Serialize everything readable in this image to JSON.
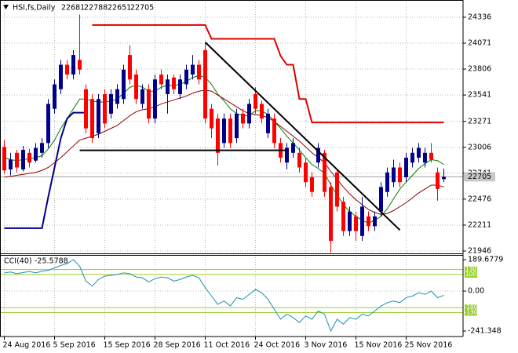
{
  "chart_data": {
    "type": "candlestick",
    "symbol": "HSI,fs,Daily",
    "categories": [
      "24 Aug 2016",
      null,
      null,
      null,
      null,
      null,
      null,
      null,
      "5 Sep 2016",
      null,
      null,
      null,
      null,
      null,
      null,
      null,
      "15 Sep 2016",
      null,
      null,
      null,
      null,
      null,
      null,
      null,
      "28 Sep 2016",
      null,
      null,
      null,
      null,
      null,
      null,
      null,
      "11 Oct 2016",
      null,
      null,
      null,
      null,
      null,
      null,
      null,
      "24 Oct 2016",
      null,
      null,
      null,
      null,
      null,
      null,
      null,
      "3 Nov 2016",
      null,
      null,
      null,
      null,
      null,
      null,
      null,
      "15 Nov 2016",
      null,
      null,
      null,
      null,
      null,
      null,
      null,
      "25 Nov 2016",
      null,
      null,
      null,
      null,
      null,
      null
    ],
    "open": [
      23010,
      22780,
      22950,
      22780,
      22950,
      22870,
      22950,
      23050,
      23400,
      23600,
      23850,
      23750,
      23900,
      23600,
      23500,
      23150,
      23550,
      23350,
      23450,
      23500,
      23950,
      23750,
      23450,
      23600,
      23300,
      23750,
      23550,
      23720,
      23550,
      23650,
      23750,
      23850,
      24000,
      23400,
      23300,
      23050,
      23300,
      23100,
      23350,
      23250,
      23550,
      23450,
      23150,
      23300,
      23050,
      22850,
      22950,
      22950,
      22850,
      22700,
      22850,
      22950,
      22600,
      22750,
      22450,
      22150,
      22300,
      22100,
      22300,
      22200,
      22350,
      22550,
      22650,
      22800,
      22700,
      22850,
      22900,
      22850,
      22950,
      22750,
      22681
    ],
    "high": [
      23080,
      22950,
      22980,
      23020,
      22990,
      23050,
      23100,
      23500,
      23700,
      23900,
      23900,
      24000,
      24364,
      23650,
      23550,
      23550,
      23600,
      23600,
      23650,
      23850,
      24050,
      23800,
      23650,
      23650,
      23750,
      23800,
      23750,
      23750,
      23750,
      23850,
      23950,
      23900,
      24071,
      23450,
      23350,
      23350,
      23350,
      23400,
      23400,
      23500,
      23620,
      23480,
      23400,
      23350,
      23100,
      23050,
      23100,
      23000,
      22900,
      22750,
      23050,
      22980,
      22650,
      22780,
      22500,
      22400,
      22350,
      22500,
      22350,
      22350,
      22650,
      22800,
      22880,
      22850,
      22950,
      23000,
      23050,
      23000,
      23050,
      22800,
      22788
    ],
    "low": [
      22740,
      22720,
      22750,
      22760,
      22800,
      22850,
      22900,
      23000,
      23350,
      23550,
      23700,
      23700,
      23750,
      23150,
      23050,
      23100,
      23200,
      23300,
      23400,
      23450,
      23650,
      23450,
      23400,
      23250,
      23250,
      23600,
      23350,
      23550,
      23500,
      23600,
      23700,
      23650,
      23250,
      23100,
      22820,
      23000,
      23000,
      23050,
      23200,
      23200,
      23350,
      23250,
      23100,
      23000,
      22850,
      22780,
      22900,
      22750,
      22600,
      22500,
      22800,
      22500,
      21930,
      22350,
      22100,
      22100,
      22050,
      22050,
      22150,
      22150,
      22300,
      22500,
      22600,
      22600,
      22650,
      22800,
      22850,
      22800,
      22850,
      22460,
      22651
    ],
    "close": [
      22770,
      22880,
      22800,
      22980,
      22850,
      23000,
      23050,
      23450,
      23650,
      23850,
      23750,
      23950,
      23800,
      23200,
      23100,
      23500,
      23250,
      23550,
      23600,
      23800,
      23700,
      23500,
      23600,
      23300,
      23700,
      23650,
      23700,
      23600,
      23700,
      23800,
      23850,
      23700,
      23300,
      23200,
      22950,
      23300,
      23050,
      23350,
      23250,
      23450,
      23400,
      23300,
      23350,
      23050,
      22900,
      23000,
      23050,
      22800,
      22650,
      22550,
      23000,
      22550,
      22050,
      22400,
      22150,
      22350,
      22150,
      22400,
      22200,
      22300,
      22600,
      22750,
      22800,
      22650,
      22900,
      22950,
      23000,
      22950,
      22880,
      22580,
      22705
    ],
    "up_color": "#00008b",
    "down_color": "#ff0000",
    "ylim": [
      21930,
      24512
    ],
    "yticks": [
      24336,
      24071,
      23806,
      23541,
      23271,
      23006,
      22741,
      22476,
      22211,
      21946
    ],
    "grid": true,
    "last_line_color": "#a0a0a0",
    "overlays": [
      {
        "color": "#008000",
        "width": 1,
        "values": [
          22900,
          22880,
          22870,
          22880,
          22890,
          22900,
          22920,
          22990,
          23080,
          23200,
          23300,
          23400,
          23500,
          23500,
          23480,
          23470,
          23470,
          23480,
          23500,
          23560,
          23620,
          23640,
          23620,
          23580,
          23580,
          23620,
          23640,
          23640,
          23650,
          23680,
          23720,
          23740,
          23720,
          23650,
          23550,
          23480,
          23400,
          23350,
          23330,
          23330,
          23380,
          23380,
          23340,
          23270,
          23200,
          23120,
          23050,
          22980,
          22900,
          22830,
          22790,
          22740,
          22620,
          22520,
          22420,
          22350,
          22300,
          22260,
          22230,
          22260,
          22300,
          22380,
          22480,
          22580,
          22650,
          22720,
          22790,
          22840,
          22880,
          22870,
          22830
        ]
      },
      {
        "color": "#8b0000",
        "width": 1,
        "values": [
          22700,
          22710,
          22720,
          22730,
          22740,
          22750,
          22770,
          22800,
          22850,
          22900,
          22960,
          23020,
          23080,
          23100,
          23120,
          23140,
          23170,
          23200,
          23230,
          23280,
          23330,
          23370,
          23390,
          23400,
          23420,
          23450,
          23470,
          23490,
          23510,
          23530,
          23560,
          23580,
          23590,
          23580,
          23540,
          23500,
          23460,
          23420,
          23380,
          23350,
          23340,
          23330,
          23310,
          23270,
          23220,
          23170,
          23120,
          23070,
          23010,
          22950,
          22900,
          22850,
          22760,
          22680,
          22600,
          22530,
          22470,
          22420,
          22370,
          22340,
          22320,
          22330,
          22360,
          22400,
          22440,
          22490,
          22540,
          22580,
          22620,
          22620,
          22600
        ]
      },
      {
        "color": "#00008b",
        "width": 2,
        "values": [
          22180,
          22180,
          22180,
          22180,
          22180,
          22180,
          22180,
          22500,
          22800,
          23100,
          23300,
          23360,
          23360,
          23360,
          null,
          null,
          null,
          null,
          null,
          null,
          null,
          null,
          null,
          null,
          null,
          null,
          null,
          null,
          null,
          null,
          null,
          null,
          null,
          null,
          null,
          null,
          null,
          null,
          null,
          null,
          null,
          null,
          null,
          null,
          null,
          null,
          null,
          null,
          null,
          null,
          null,
          null,
          null,
          null,
          null,
          null,
          null,
          null,
          null,
          null,
          null,
          null,
          null,
          null,
          null,
          null,
          null,
          null,
          null,
          null,
          null
        ]
      },
      {
        "color": "#e00000",
        "width": 2,
        "values": [
          null,
          null,
          null,
          null,
          null,
          null,
          null,
          null,
          null,
          null,
          null,
          null,
          null,
          null,
          24256,
          24256,
          24256,
          24256,
          24256,
          24256,
          24256,
          24256,
          24256,
          24256,
          24256,
          24256,
          24256,
          24256,
          24256,
          24256,
          24256,
          24256,
          24256,
          24115,
          24115,
          24115,
          24115,
          24115,
          24115,
          24115,
          24115,
          24115,
          24115,
          24115,
          23940,
          23850,
          23850,
          23500,
          23500,
          23260,
          23260,
          23260,
          23260,
          23260,
          23260,
          23260,
          23260,
          23260,
          23260,
          23260,
          23260,
          23260,
          23260,
          23260,
          23260,
          23260,
          23260,
          23260,
          23260,
          23260,
          23260
        ]
      }
    ],
    "trendlines": [
      {
        "color": "#000000",
        "x": [
          12,
          45
        ],
        "y": [
          22975,
          22975
        ]
      },
      {
        "color": "#000000",
        "x": [
          32,
          63
        ],
        "y": [
          24080,
          22160
        ]
      }
    ],
    "cci": {
      "label": "CCI(40)",
      "color": "#1f8fb5",
      "values": [
        110,
        115,
        105,
        112,
        118,
        110,
        120,
        125,
        140,
        155,
        165,
        189.6779,
        150,
        60,
        30,
        70,
        90,
        95,
        100,
        110,
        105,
        85,
        80,
        55,
        75,
        85,
        80,
        60,
        70,
        85,
        95,
        80,
        20,
        -30,
        -80,
        -60,
        -90,
        -40,
        -50,
        -20,
        10,
        -10,
        -50,
        -110,
        -170,
        -140,
        -160,
        -190,
        -150,
        -170,
        -120,
        -140,
        -241.348,
        -170,
        -200,
        -160,
        -170,
        -140,
        -150,
        -120,
        -90,
        -70,
        -60,
        -70,
        -40,
        -30,
        -10,
        -20,
        0,
        -40,
        -25.5788
      ],
      "ylim": [
        -241.348,
        189.6779
      ],
      "yticks": [
        189.6779,
        {
          "value": 0,
          "label": "0.00"
        },
        -241.348
      ],
      "levels": [
        130,
        100,
        -100,
        -130
      ],
      "level_color": "#9acd32"
    }
  }
}
